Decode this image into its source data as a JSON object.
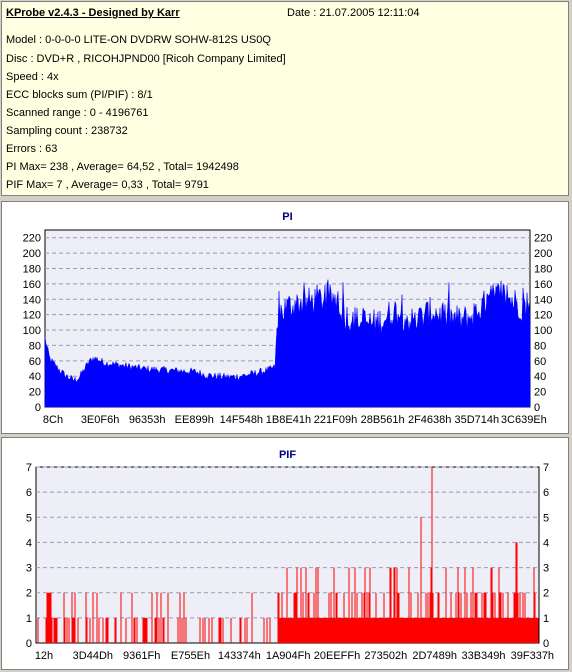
{
  "info": {
    "title": "KProbe v2.4.3 - Designed by Karr",
    "date": "Date : 21.07.2005 12:11:04",
    "lines": [
      "Model : 0-0-0-0 LITE-ON DVDRW SOHW-812S  US0Q",
      "Disc : DVD+R , RICOHJPND00 [Ricoh Company Limited]",
      "Speed : 4x",
      "ECC blocks sum (PI/PIF) : 8/1",
      "Scanned range : 0 - 4196761",
      "Sampling count : 238732",
      "Errors : 63",
      "PI Max= 238 , Average= 64,52 , Total= 1942498",
      "PIF Max= 7 , Average= 0,33 , Total= 9791"
    ]
  },
  "chart_data": [
    {
      "type": "area",
      "title": "PI",
      "color": "#0000ff",
      "ylim": [
        0,
        230
      ],
      "yticks": [
        0,
        20,
        40,
        60,
        80,
        100,
        120,
        140,
        160,
        180,
        200,
        220
      ],
      "xtick_labels": [
        "8Ch",
        "3E0F6h",
        "96353h",
        "EE899h",
        "14F548h",
        "1B8E41h",
        "221F09h",
        "28B561h",
        "2F4638h",
        "35D714h",
        "3C639Eh"
      ],
      "grid": true,
      "profile": [
        [
          0,
          90
        ],
        [
          0.5,
          75
        ],
        [
          1,
          62
        ],
        [
          2,
          55
        ],
        [
          3,
          48
        ],
        [
          4,
          42
        ],
        [
          5,
          38
        ],
        [
          6,
          35
        ],
        [
          7,
          38
        ],
        [
          8,
          48
        ],
        [
          9,
          58
        ],
        [
          10,
          64
        ],
        [
          11,
          62
        ],
        [
          12,
          58
        ],
        [
          14,
          56
        ],
        [
          16,
          54
        ],
        [
          18,
          52
        ],
        [
          20,
          50
        ],
        [
          22,
          49
        ],
        [
          25,
          48
        ],
        [
          28,
          47
        ],
        [
          31,
          46
        ],
        [
          33,
          42
        ],
        [
          35,
          40
        ],
        [
          38,
          39
        ],
        [
          40,
          40
        ],
        [
          42,
          42
        ],
        [
          44,
          45
        ],
        [
          46,
          48
        ],
        [
          47.5,
          52
        ],
        [
          48,
          120
        ],
        [
          50,
          130
        ],
        [
          52,
          135
        ],
        [
          54,
          135
        ],
        [
          56,
          140
        ],
        [
          58,
          140
        ],
        [
          60,
          140
        ],
        [
          62,
          118
        ],
        [
          64,
          112
        ],
        [
          66,
          110
        ],
        [
          68,
          108
        ],
        [
          70,
          115
        ],
        [
          72,
          125
        ],
        [
          74,
          118
        ],
        [
          76,
          110
        ],
        [
          78,
          118
        ],
        [
          80,
          125
        ],
        [
          82,
          118
        ],
        [
          84,
          115
        ],
        [
          86,
          112
        ],
        [
          88,
          118
        ],
        [
          90,
          130
        ],
        [
          92,
          140
        ],
        [
          94,
          148
        ],
        [
          96,
          140
        ],
        [
          98,
          132
        ],
        [
          100,
          125
        ]
      ]
    },
    {
      "type": "bar",
      "title": "PIF",
      "color": "#ff0000",
      "ylim": [
        0,
        7
      ],
      "yticks": [
        0,
        1,
        2,
        3,
        4,
        5,
        6,
        7
      ],
      "xtick_labels": [
        "12h",
        "3D44Dh",
        "9361Fh",
        "E755Eh",
        "143374h",
        "1A904Fh",
        "20EEFFh",
        "273502h",
        "2D7489h",
        "33B349h",
        "39F337h"
      ],
      "grid": true,
      "max_value": 7
    }
  ]
}
